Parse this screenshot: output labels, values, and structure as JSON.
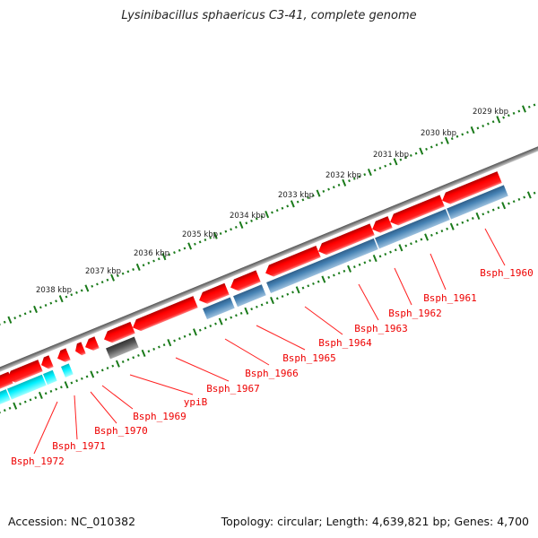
{
  "title": "Lysinibacillus sphaericus C3-41, complete genome",
  "footer": {
    "accession": "Accession: NC_010382",
    "summary": "Topology: circular; Length: 4,639,821 bp; Genes: 4,700"
  },
  "ticks": [
    "2029 kbp",
    "2030 kbp",
    "2031 kbp",
    "2032 kbp",
    "2033 kbp",
    "2034 kbp",
    "2035 kbp",
    "2036 kbp",
    "2037 kbp",
    "2038 kbp"
  ],
  "genes": [
    "Bsph_1960",
    "Bsph_1961",
    "Bsph_1962",
    "Bsph_1963",
    "Bsph_1964",
    "Bsph_1965",
    "Bsph_1966",
    "Bsph_1967",
    "ypiB",
    "Bsph_1969",
    "Bsph_1970",
    "Bsph_1971",
    "Bsph_1972"
  ],
  "colors": {
    "forward": "#ff0000",
    "reverse": "#4682b4",
    "reverse_alt": "#00e5ee",
    "other": "#555555",
    "backbone": "#808080",
    "ticks": "#1a7a1a"
  }
}
